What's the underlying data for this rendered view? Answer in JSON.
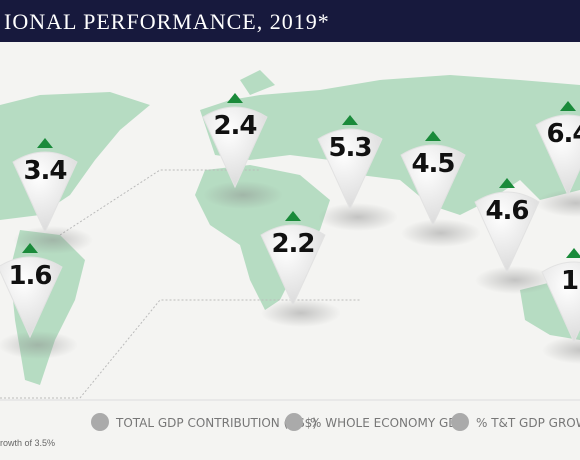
{
  "header": {
    "title": "IONAL PERFORMANCE, 2019*"
  },
  "pins": [
    {
      "label": "3.4"
    },
    {
      "label": "2.4"
    },
    {
      "label": "5.3"
    },
    {
      "label": "4.5"
    },
    {
      "label": "6.4"
    },
    {
      "label": "1.6"
    },
    {
      "label": "2.2"
    },
    {
      "label": "4.6"
    },
    {
      "label": "1."
    }
  ],
  "legend": [
    {
      "label": "TOTAL GDP CONTRIBUTION (US$)"
    },
    {
      "label": "% WHOLE ECONOMY GDP"
    },
    {
      "label": "% T&T GDP GROWTH"
    }
  ],
  "footnote": "rowth of 3.5%"
}
